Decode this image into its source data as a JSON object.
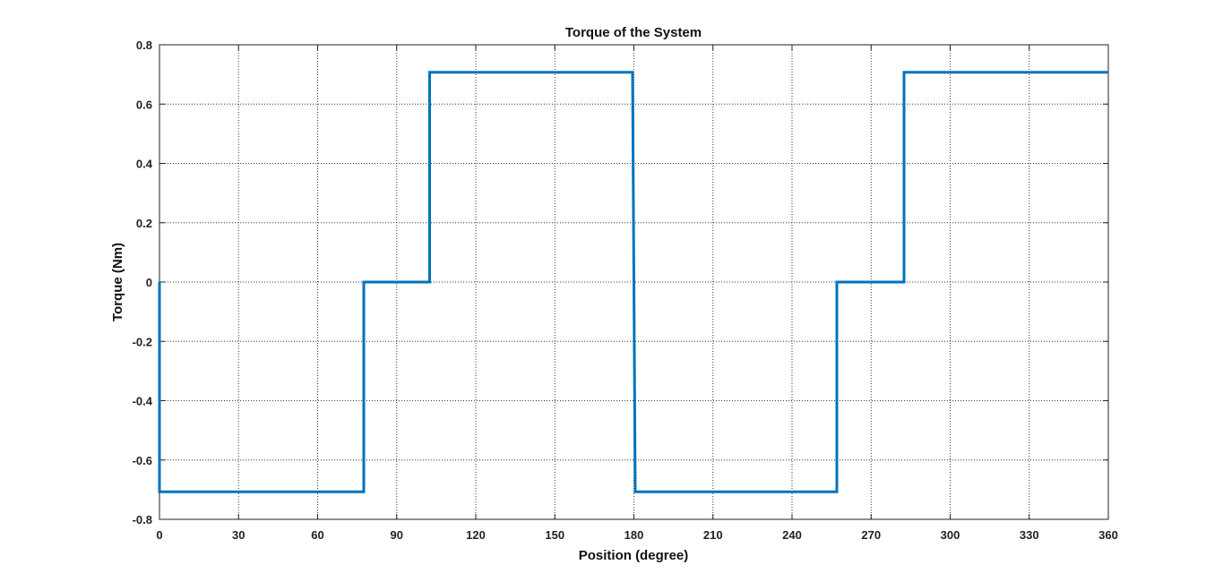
{
  "chart_data": {
    "type": "line",
    "title": "Torque of the System",
    "xlabel": "Position (degree)",
    "ylabel": "Torque (Nm)",
    "xlim": [
      0,
      360
    ],
    "ylim": [
      -0.8,
      0.8
    ],
    "xticks": [
      0,
      30,
      60,
      90,
      120,
      150,
      180,
      210,
      240,
      270,
      300,
      330,
      360
    ],
    "yticks": [
      -0.8,
      -0.6,
      -0.4,
      -0.2,
      0,
      0.2,
      0.4,
      0.6,
      0.8
    ],
    "xtick_labels": [
      "0",
      "30",
      "60",
      "90",
      "120",
      "150",
      "180",
      "210",
      "240",
      "270",
      "300",
      "330",
      "360"
    ],
    "ytick_labels": [
      "-0.8",
      "-0.6",
      "-0.4",
      "-0.2",
      "0",
      "0.2",
      "0.4",
      "0.6",
      "0.8"
    ],
    "grid": true,
    "series": [
      {
        "color": "#0072BD",
        "x": [
          0,
          0,
          77.5,
          77.5,
          102.5,
          102.5,
          179.5,
          180.5,
          257,
          257,
          282.5,
          282.5,
          360
        ],
        "y": [
          0,
          -0.707,
          -0.707,
          0,
          0,
          0.707,
          0.707,
          -0.707,
          -0.707,
          0,
          0,
          0.707,
          0.707
        ]
      }
    ]
  }
}
